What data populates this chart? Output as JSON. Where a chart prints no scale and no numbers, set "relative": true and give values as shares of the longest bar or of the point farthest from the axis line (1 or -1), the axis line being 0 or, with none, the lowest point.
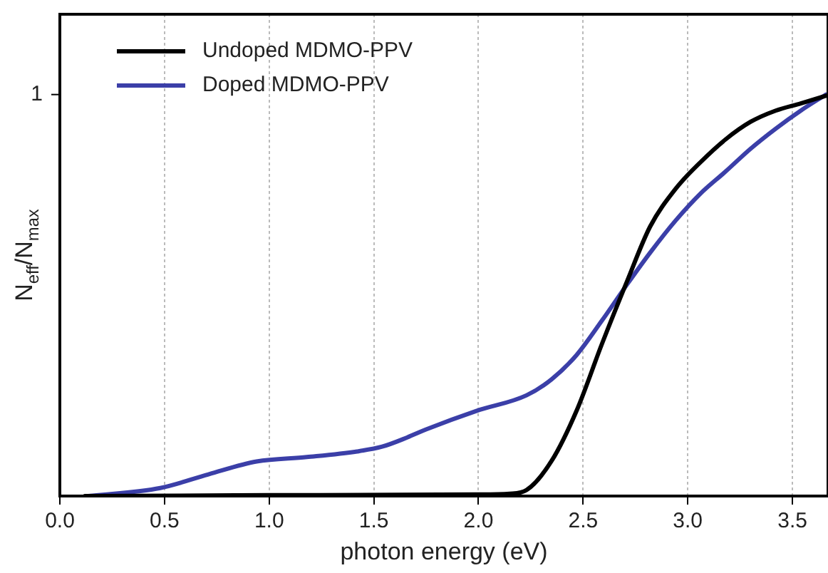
{
  "chart_data": {
    "type": "line",
    "xlabel": "photon energy (eV)",
    "ylabel": "N$_{eff}$/N$_{max}$",
    "relative": true,
    "xlim": [
      0,
      3.67
    ],
    "xticks": [
      {
        "value": 0,
        "label": "0.0"
      },
      0.5,
      {
        "value": 1,
        "label": "1.0"
      },
      1.5,
      {
        "value": 2,
        "label": "2.0"
      },
      2.5,
      {
        "value": 3,
        "label": "3.0"
      },
      3.5
    ],
    "annotations": [
      "1"
    ],
    "grid": "x",
    "legend": "top left",
    "marker": "none",
    "line_style": "solid",
    "series": [
      {
        "name": "Undoped MDMO-PPV",
        "color": "#000000",
        "x": [
          0.12,
          1.0,
          2.0,
          2.15,
          2.23,
          2.35,
          2.47,
          2.59,
          2.71,
          2.82,
          2.94,
          3.06,
          3.18,
          3.3,
          3.42,
          3.54,
          3.66
        ],
        "values": [
          0,
          0.002,
          0.004,
          0.006,
          0.015,
          0.088,
          0.214,
          0.379,
          0.535,
          0.671,
          0.764,
          0.831,
          0.888,
          0.932,
          0.96,
          0.978,
          0.997
        ]
      },
      {
        "name": "Doped MDMO-PPV",
        "color": "#3b3fa8",
        "x": [
          0.136,
          0.48,
          0.71,
          0.94,
          1.18,
          1.42,
          1.54,
          1.66,
          1.75,
          1.99,
          2.23,
          2.35,
          2.47,
          2.59,
          2.71,
          2.82,
          2.94,
          3.06,
          3.18,
          3.3,
          3.42,
          3.54,
          3.66
        ],
        "values": [
          0,
          0.02,
          0.054,
          0.086,
          0.097,
          0.111,
          0.123,
          0.146,
          0.166,
          0.212,
          0.251,
          0.291,
          0.352,
          0.437,
          0.527,
          0.606,
          0.685,
          0.753,
          0.808,
          0.865,
          0.915,
          0.96,
          1
        ]
      }
    ]
  }
}
